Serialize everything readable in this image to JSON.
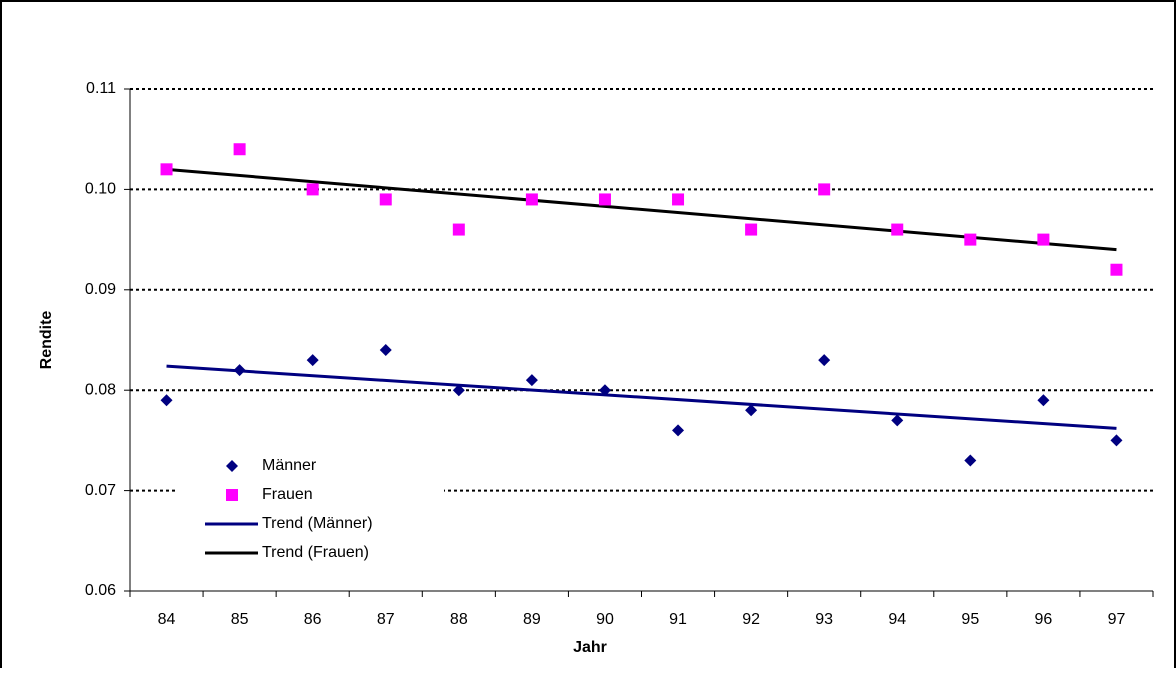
{
  "chart_data": {
    "type": "scatter",
    "x_label": "Jahr",
    "y_label": "Rendite",
    "categories": [
      "84",
      "85",
      "86",
      "87",
      "88",
      "89",
      "90",
      "91",
      "92",
      "93",
      "94",
      "95",
      "96",
      "97"
    ],
    "series": [
      {
        "name": "Männer",
        "color": "#000080",
        "marker": "diamond",
        "values": [
          0.079,
          0.082,
          0.083,
          0.084,
          0.08,
          0.081,
          0.08,
          0.076,
          0.078,
          0.083,
          0.077,
          0.073,
          0.079,
          0.075
        ]
      },
      {
        "name": "Frauen",
        "color": "#ff00ff",
        "marker": "square",
        "values": [
          0.102,
          0.104,
          0.1,
          0.099,
          0.096,
          0.099,
          0.099,
          0.099,
          0.096,
          0.1,
          0.096,
          0.095,
          0.095,
          0.092
        ]
      }
    ],
    "trends": [
      {
        "name": "Trend (Männer)",
        "color": "#000080",
        "values": [
          0.0824,
          0.0762
        ]
      },
      {
        "name": "Trend (Frauen)",
        "color": "#000000",
        "values": [
          0.102,
          0.094
        ]
      }
    ],
    "ylim": [
      0.06,
      0.11
    ],
    "yticks": [
      0.06,
      0.07,
      0.08,
      0.09,
      {
        "value": 0.1,
        "label": "0.10"
      },
      0.11
    ],
    "grid": true
  }
}
